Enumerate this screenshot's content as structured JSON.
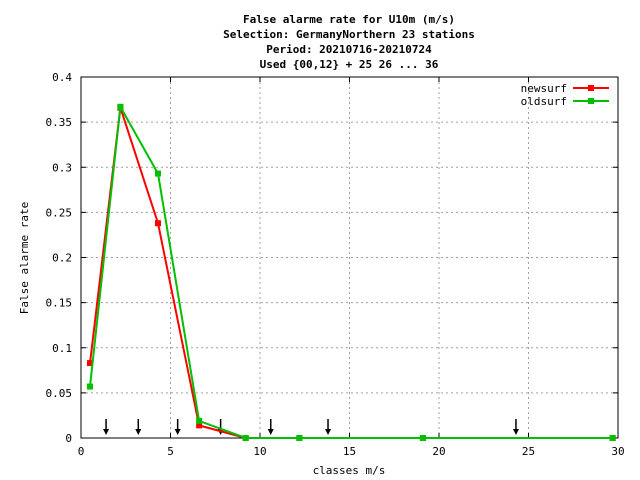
{
  "chart_data": {
    "type": "line",
    "title_lines": [
      "False alarme rate  for U10m (m/s)",
      "Selection: GermanyNorthern     23 stations",
      "Period: 20210716-20210724",
      "Used {00,12} + 25 26 ... 36"
    ],
    "xlabel": "classes m/s",
    "ylabel": "False alarme rate",
    "xlim": [
      0,
      30
    ],
    "ylim": [
      0,
      0.4
    ],
    "x_ticks": [
      0,
      5,
      10,
      15,
      20,
      25,
      30
    ],
    "x_tick_labels": [
      "0",
      "5",
      "10",
      "15",
      "20",
      "25",
      "30"
    ],
    "y_ticks": [
      0,
      0.05,
      0.1,
      0.15,
      0.2,
      0.25,
      0.3,
      0.35,
      0.4
    ],
    "y_tick_labels": [
      "0",
      "0.05",
      "0.1",
      "0.15",
      "0.2",
      "0.25",
      "0.3",
      "0.35",
      "0.4"
    ],
    "grid": true,
    "legend_position": "top-right",
    "series": [
      {
        "name": "newsurf",
        "color": "#ff0000",
        "x": [
          0.5,
          2.2,
          4.3,
          6.6,
          9.2,
          12.2,
          19.1,
          29.7
        ],
        "y": [
          0.083,
          0.366,
          0.238,
          0.014,
          0.0,
          0.0,
          0.0,
          0.0
        ]
      },
      {
        "name": "oldsurf",
        "color": "#00c000",
        "x": [
          0.5,
          2.2,
          4.3,
          6.6,
          9.2,
          12.2,
          19.1,
          29.7
        ],
        "y": [
          0.057,
          0.367,
          0.293,
          0.019,
          0.0,
          0.0,
          0.0,
          0.0
        ]
      }
    ],
    "arrow_markers_x": [
      1.4,
      3.2,
      5.4,
      7.8,
      10.6,
      13.8,
      24.3
    ]
  }
}
